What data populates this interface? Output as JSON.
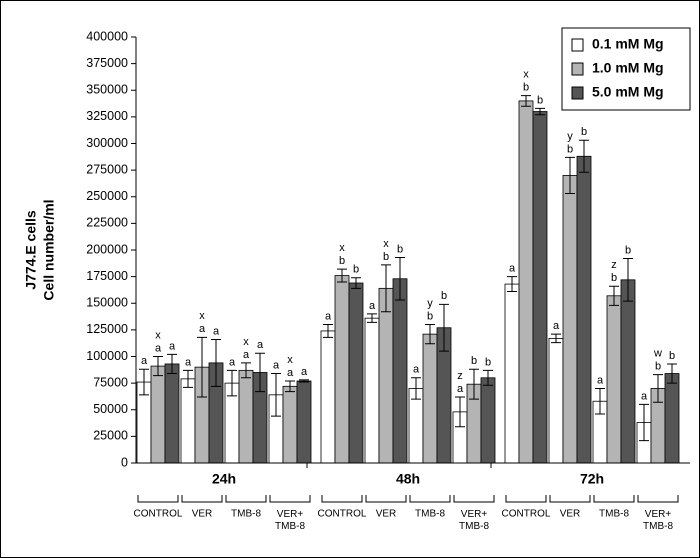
{
  "chart_data": {
    "type": "bar",
    "y_label_lines": [
      "J774.E cells",
      "Cell number/ml"
    ],
    "groups": [
      "24h",
      "48h",
      "72h"
    ],
    "categories": [
      "CONTROL",
      "VER",
      "TMB-8",
      "VER+\nTMB-8",
      "CONTROL",
      "VER",
      "TMB-8",
      "VER+\nTMB-8",
      "CONTROL",
      "VER",
      "TMB-8",
      "VER+\nTMB-8"
    ],
    "series": [
      {
        "name": "0.1 mM Mg",
        "color": "#ffffff",
        "values": [
          76000,
          79000,
          75000,
          64000,
          124000,
          136000,
          70000,
          48000,
          168000,
          117000,
          58000,
          38000
        ],
        "errors": [
          12000,
          8000,
          12000,
          20000,
          6000,
          4000,
          10000,
          14000,
          7000,
          4000,
          12000,
          17000
        ],
        "letters": [
          [
            "a"
          ],
          [
            "a"
          ],
          [
            "a"
          ],
          [
            "a"
          ],
          [
            "a"
          ],
          [
            "a"
          ],
          [
            "a"
          ],
          [
            "z",
            "a"
          ],
          [
            "a"
          ],
          [
            "a"
          ],
          [
            "a"
          ],
          [
            "a"
          ]
        ]
      },
      {
        "name": "1.0 mM Mg",
        "color": "#b4b4b4",
        "values": [
          91000,
          90000,
          87000,
          72000,
          176000,
          164000,
          121000,
          74000,
          340000,
          270000,
          157000,
          70000
        ],
        "errors": [
          9000,
          28000,
          7000,
          5000,
          6000,
          22000,
          9000,
          14000,
          5000,
          17000,
          9000,
          13000
        ],
        "letters": [
          [
            "x",
            "a"
          ],
          [
            "x",
            "a"
          ],
          [
            "x",
            "a"
          ],
          [
            "x",
            "a"
          ],
          [
            "x",
            "b"
          ],
          [
            "x",
            "b"
          ],
          [
            "y",
            "b"
          ],
          [
            "b"
          ],
          [
            "x",
            "b"
          ],
          [
            "y",
            "b"
          ],
          [
            "z",
            "b"
          ],
          [
            "w",
            "b"
          ]
        ]
      },
      {
        "name": "5.0 mM Mg",
        "color": "#555555",
        "values": [
          93000,
          94000,
          85000,
          77000,
          169000,
          173000,
          127000,
          80000,
          330000,
          288000,
          172000,
          84000
        ],
        "errors": [
          9000,
          22000,
          18000,
          1000,
          5000,
          20000,
          22000,
          7000,
          3000,
          15000,
          20000,
          9000
        ],
        "letters": [
          [
            "a"
          ],
          [
            "a"
          ],
          [
            "a"
          ],
          [
            "a"
          ],
          [
            "b"
          ],
          [
            "b"
          ],
          [
            "b"
          ],
          [
            "b"
          ],
          [
            "b"
          ],
          [
            "b"
          ],
          [
            "b"
          ],
          [
            "b"
          ]
        ]
      }
    ],
    "ylim": [
      0,
      400000
    ],
    "yticks": [
      0,
      25000,
      50000,
      75000,
      100000,
      125000,
      150000,
      175000,
      200000,
      225000,
      250000,
      275000,
      300000,
      325000,
      350000,
      375000,
      400000
    ],
    "legend": "top-right"
  }
}
